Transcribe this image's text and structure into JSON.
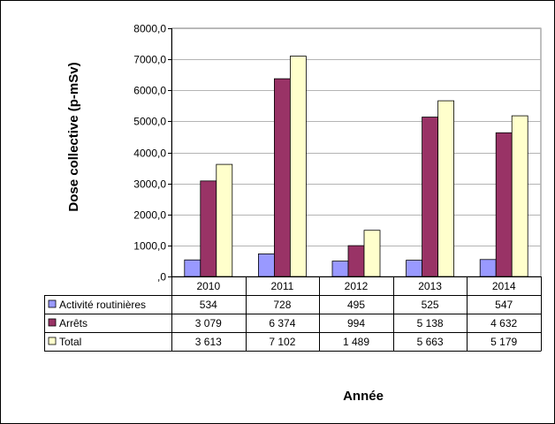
{
  "chart_data": {
    "type": "bar",
    "title": "",
    "xlabel": "Année",
    "ylabel": "Dose collective (p-mSv)",
    "ylim": [
      0,
      8000
    ],
    "yticks": [
      0,
      1000,
      2000,
      3000,
      4000,
      5000,
      6000,
      7000,
      8000
    ],
    "ytick_labels": [
      ",0",
      "1000,0",
      "2000,0",
      "3000,0",
      "4000,0",
      "5000,0",
      "6000,0",
      "7000,0",
      "8000,0"
    ],
    "grid": "horizontal",
    "legend": "data-table",
    "categories": [
      "2010",
      "2011",
      "2012",
      "2013",
      "2014"
    ],
    "series": [
      {
        "name": "Activité routinières",
        "color": "#9999FF",
        "values": [
          534,
          728,
          495,
          525,
          547
        ],
        "labels": [
          "534",
          "728",
          "495",
          "525",
          "547"
        ]
      },
      {
        "name": "Arrêts",
        "color": "#993366",
        "values": [
          3079,
          6374,
          994,
          5138,
          4632
        ],
        "labels": [
          "3 079",
          "6 374",
          "994",
          "5 138",
          "4 632"
        ]
      },
      {
        "name": "Total",
        "color": "#FFFFCC",
        "values": [
          3613,
          7102,
          1489,
          5663,
          5179
        ],
        "labels": [
          "3 613",
          "7 102",
          "1 489",
          "5 663",
          "5 179"
        ]
      }
    ]
  }
}
